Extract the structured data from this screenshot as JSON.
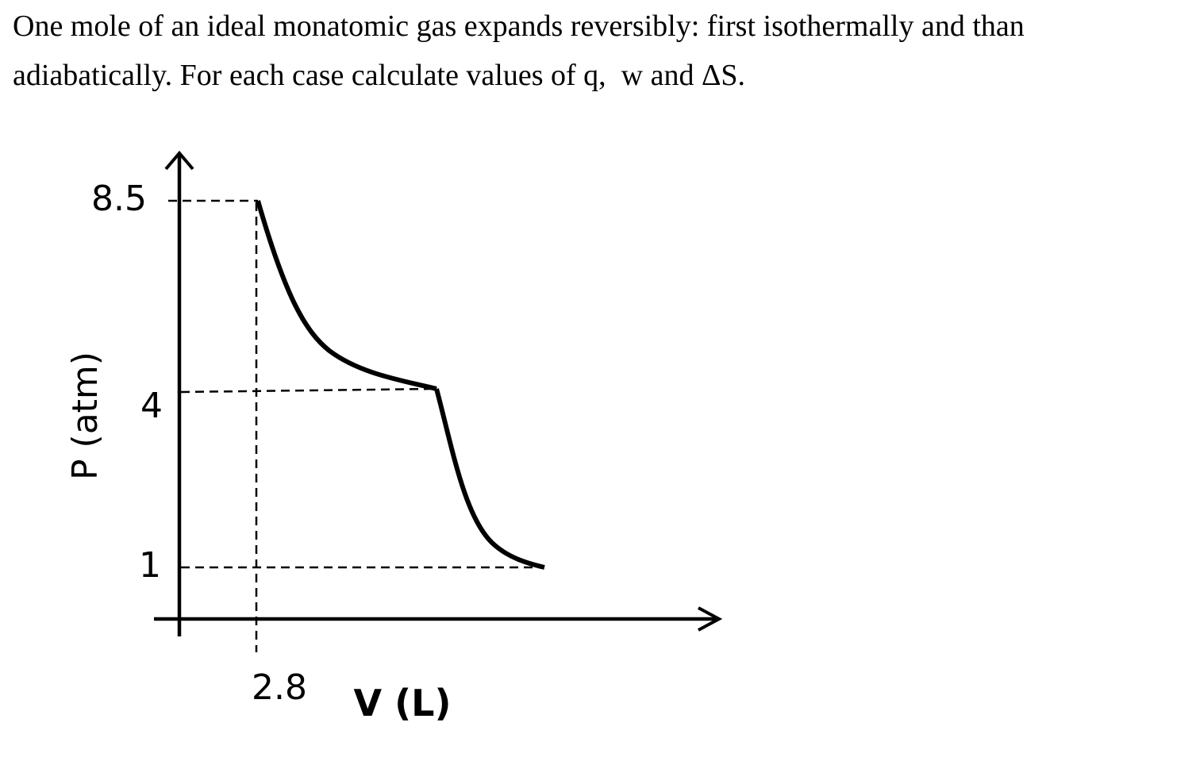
{
  "problem": {
    "line1": "One mole of an ideal monatomic gas expands reversibly: first isothermally and than",
    "line2": "adiabatically. For each case calculate values of q,  w and ΔS."
  },
  "diagram": {
    "y_axis_label": "P (atm)",
    "x_axis_label": "V (L)",
    "y_ticks": [
      "8.5",
      "4",
      "1"
    ],
    "x_ticks": [
      "2.8"
    ],
    "states": [
      {
        "V": 2.8,
        "P": 8.5
      },
      {
        "P": 4
      },
      {
        "P": 1
      }
    ],
    "processes": [
      "isothermal",
      "adiabatic"
    ],
    "colors": {
      "curve": "#000000",
      "axes": "#000000",
      "guides": "#000000"
    }
  }
}
